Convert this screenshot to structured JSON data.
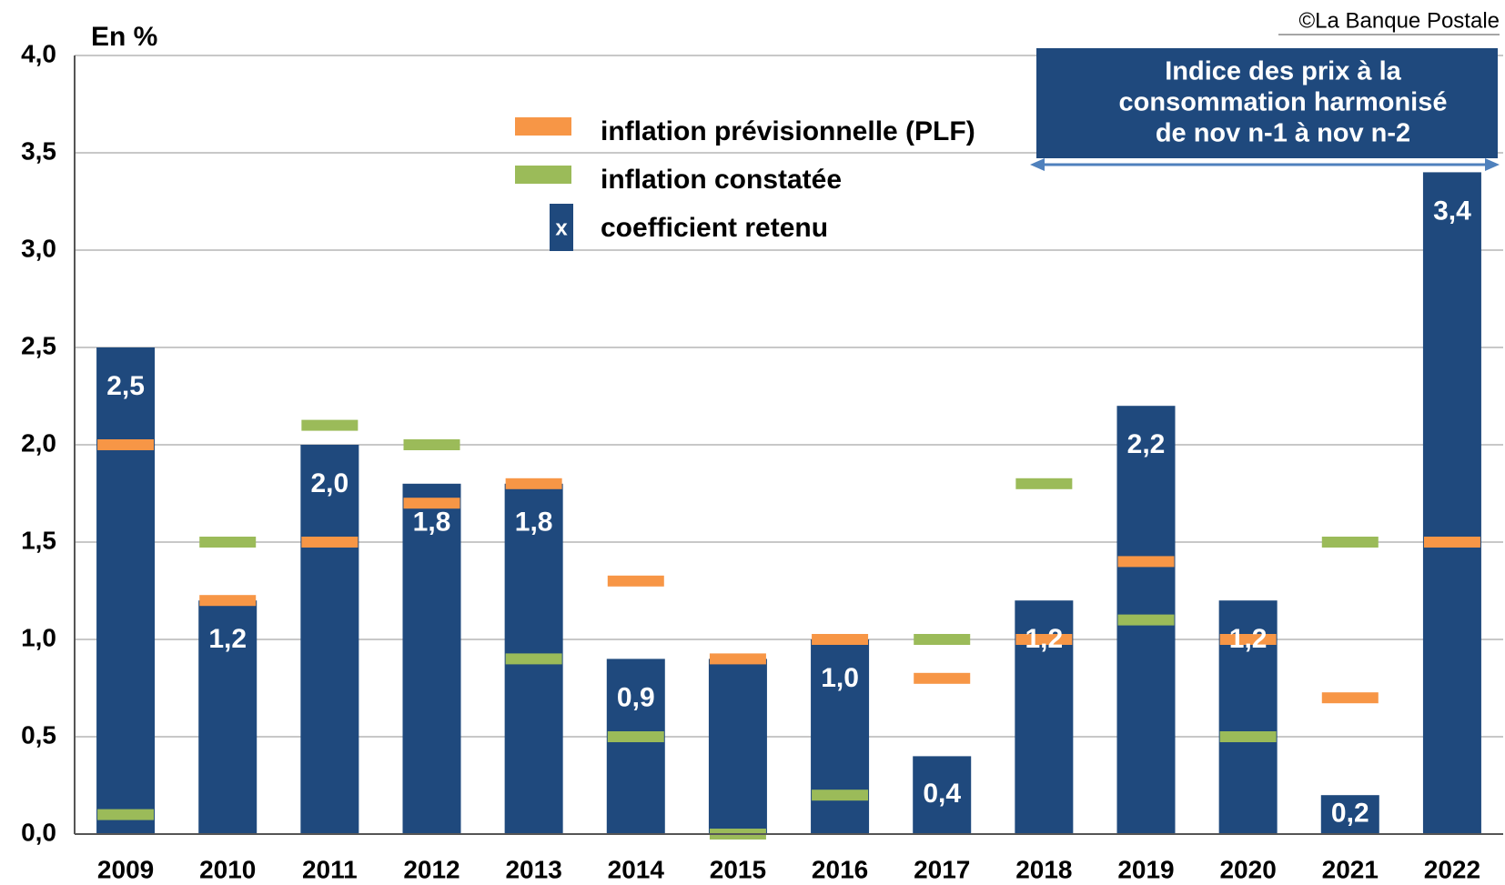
{
  "chart_data": {
    "type": "bar",
    "y_unit_label": "En %",
    "source": "©La Banque Postale",
    "annotation": [
      "Indice des prix à la",
      "consommation harmonisé",
      "de nov n-1 à nov n-2"
    ],
    "categories": [
      "2009",
      "2010",
      "2011",
      "2012",
      "2013",
      "2014",
      "2015",
      "2016",
      "2017",
      "2018",
      "2019",
      "2020",
      "2021",
      "2022"
    ],
    "series": [
      {
        "name": "coefficient retenu",
        "color": "#1f497d",
        "kind": "bar",
        "legend_symbol": "x",
        "values": [
          2.5,
          1.2,
          2.0,
          1.8,
          1.8,
          0.9,
          0.9,
          1.0,
          0.4,
          1.2,
          2.2,
          1.2,
          0.2,
          3.4
        ],
        "value_labels": [
          "2,5",
          "1,2",
          "2,0",
          "1,8",
          "1,8",
          "0,9",
          null,
          "1,0",
          "0,4",
          "1,2",
          "2,2",
          "1,2",
          "0,2",
          "3,4"
        ]
      },
      {
        "name": "inflation prévisionnelle (PLF)",
        "color": "#f79646",
        "kind": "marker",
        "values": [
          2.0,
          1.2,
          1.5,
          1.7,
          1.8,
          1.3,
          0.9,
          1.0,
          0.8,
          1.0,
          1.4,
          1.0,
          0.7,
          1.5
        ]
      },
      {
        "name": "inflation  constatée",
        "color": "#9bbb59",
        "kind": "marker",
        "values": [
          0.1,
          1.5,
          2.1,
          2.0,
          0.9,
          0.5,
          0.0,
          0.2,
          1.0,
          1.8,
          1.1,
          0.5,
          1.5,
          null
        ]
      }
    ],
    "ylim": [
      0,
      4.0
    ],
    "yticks": [
      {
        "value": 0,
        "label": "0,0"
      },
      {
        "value": 0.5,
        "label": "0,5"
      },
      {
        "value": 1.0,
        "label": "1,0"
      },
      {
        "value": 1.5,
        "label": "1,5"
      },
      {
        "value": 2.0,
        "label": "2,0"
      },
      {
        "value": 2.5,
        "label": "2,5"
      },
      {
        "value": 3.0,
        "label": "3,0"
      },
      {
        "value": 3.5,
        "label": "3,5"
      },
      {
        "value": 4.0,
        "label": "4,0"
      }
    ],
    "grid": true
  }
}
